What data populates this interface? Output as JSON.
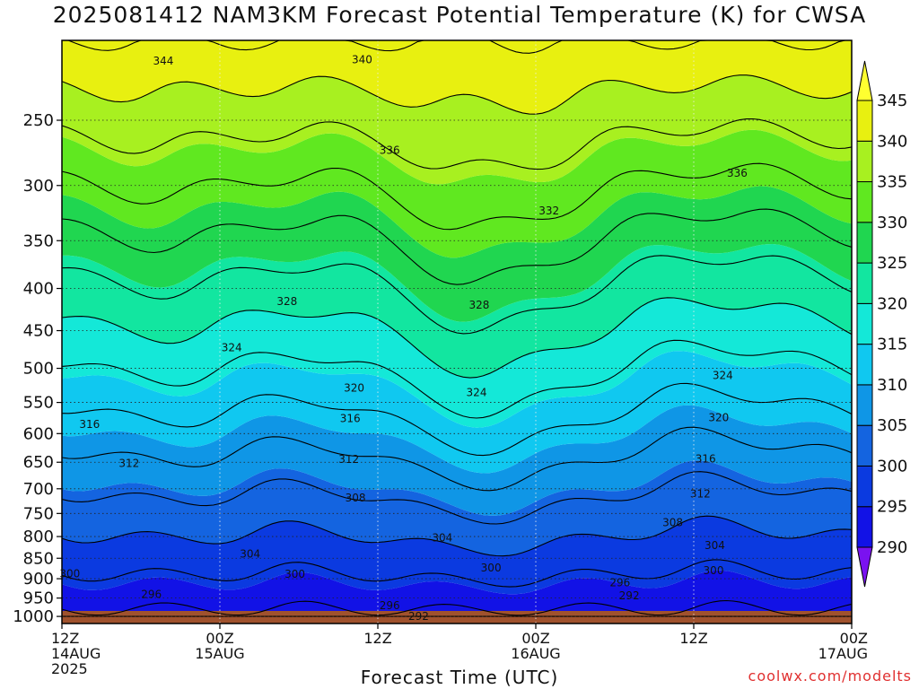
{
  "title": "2025081412 NAM3KM Forecast Potential Temperature (K) for CWSA",
  "xlabel": "Forecast Time (UTC)",
  "credit": "coolwx.com/modelts",
  "chart_data": {
    "type": "heatmap",
    "y_ticks": [
      250,
      300,
      350,
      400,
      450,
      500,
      550,
      600,
      650,
      700,
      750,
      800,
      850,
      900,
      950,
      1000
    ],
    "y_range_hpa": [
      200,
      1020
    ],
    "y_scale": "log",
    "x_range_hours": [
      0,
      60
    ],
    "x_ticks": [
      {
        "hour": 0,
        "lines": [
          "12Z",
          "14AUG",
          "2025"
        ]
      },
      {
        "hour": 12,
        "lines": [
          "00Z",
          "15AUG"
        ]
      },
      {
        "hour": 24,
        "lines": [
          "12Z"
        ]
      },
      {
        "hour": 36,
        "lines": [
          "00Z",
          "16AUG"
        ]
      },
      {
        "hour": 48,
        "lines": [
          "12Z"
        ]
      },
      {
        "hour": 60,
        "lines": [
          "00Z",
          "17AUG"
        ]
      }
    ],
    "colorbar": {
      "ticks": [
        290,
        295,
        300,
        305,
        310,
        315,
        320,
        325,
        330,
        335,
        340,
        345
      ],
      "colors": [
        "#7a12f0",
        "#1212e6",
        "#0b3ae0",
        "#1464e0",
        "#0f96e6",
        "#10c8f0",
        "#14e8d8",
        "#12e6a0",
        "#20d650",
        "#60e820",
        "#a8f020",
        "#e8f010",
        "#ffff30"
      ]
    },
    "contour_labels": [
      {
        "value": "344",
        "t": 7.7,
        "p": 212
      },
      {
        "value": "340",
        "t": 22.8,
        "p": 211
      },
      {
        "value": "336",
        "t": 24.9,
        "p": 272
      },
      {
        "value": "336",
        "t": 51.3,
        "p": 290
      },
      {
        "value": "332",
        "t": 37.0,
        "p": 322
      },
      {
        "value": "328",
        "t": 17.1,
        "p": 415
      },
      {
        "value": "328",
        "t": 31.7,
        "p": 419
      },
      {
        "value": "324",
        "t": 12.9,
        "p": 472
      },
      {
        "value": "324",
        "t": 31.5,
        "p": 535
      },
      {
        "value": "324",
        "t": 50.2,
        "p": 510
      },
      {
        "value": "320",
        "t": 22.2,
        "p": 528
      },
      {
        "value": "320",
        "t": 49.9,
        "p": 574
      },
      {
        "value": "316",
        "t": 2.1,
        "p": 585
      },
      {
        "value": "316",
        "t": 21.9,
        "p": 575
      },
      {
        "value": "316",
        "t": 48.9,
        "p": 644
      },
      {
        "value": "312",
        "t": 5.1,
        "p": 652
      },
      {
        "value": "312",
        "t": 21.8,
        "p": 645
      },
      {
        "value": "312",
        "t": 48.5,
        "p": 710
      },
      {
        "value": "308",
        "t": 22.3,
        "p": 718
      },
      {
        "value": "308",
        "t": 46.4,
        "p": 769
      },
      {
        "value": "304",
        "t": 14.3,
        "p": 840
      },
      {
        "value": "304",
        "t": 28.9,
        "p": 803
      },
      {
        "value": "304",
        "t": 49.6,
        "p": 820
      },
      {
        "value": "300",
        "t": 0.6,
        "p": 888
      },
      {
        "value": "300",
        "t": 17.7,
        "p": 889
      },
      {
        "value": "300",
        "t": 32.6,
        "p": 873
      },
      {
        "value": "300",
        "t": 49.5,
        "p": 880
      },
      {
        "value": "296",
        "t": 6.8,
        "p": 940
      },
      {
        "value": "296",
        "t": 24.9,
        "p": 970
      },
      {
        "value": "296",
        "t": 42.4,
        "p": 910
      },
      {
        "value": "292",
        "t": 27.1,
        "p": 1000
      },
      {
        "value": "292",
        "t": 43.1,
        "p": 944
      }
    ]
  }
}
